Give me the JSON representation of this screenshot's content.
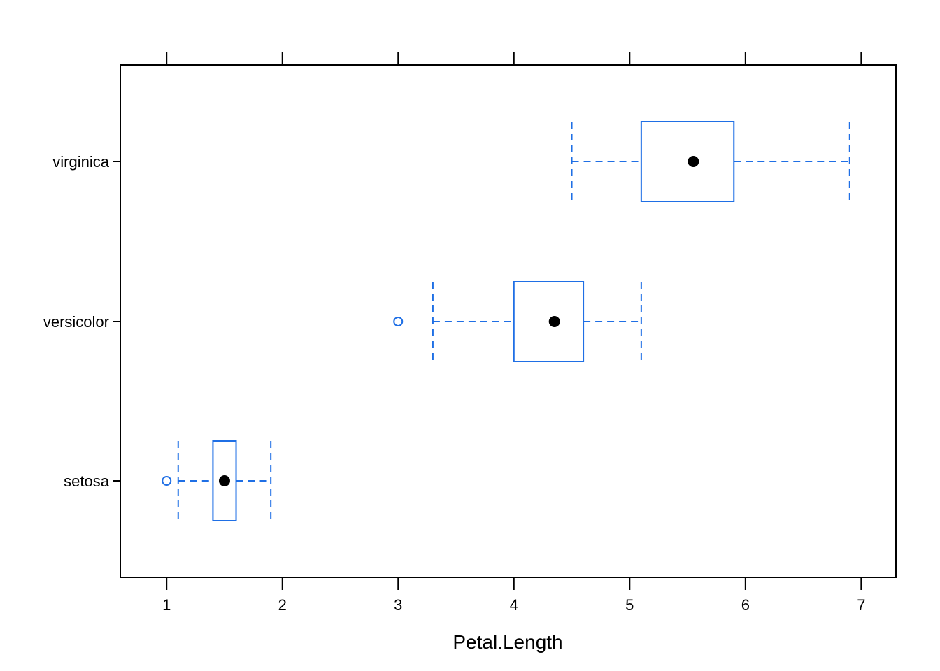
{
  "chart_data": {
    "type": "box",
    "orientation": "horizontal",
    "title": "",
    "xlabel": "Petal.Length",
    "ylabel": "",
    "xlim": [
      0.6,
      7.3
    ],
    "x_ticks": [
      1,
      2,
      3,
      4,
      5,
      6,
      7
    ],
    "x_ticks_top": true,
    "x_tick_labels_top": false,
    "grid": false,
    "colors": {
      "box": "#1f6fe5",
      "median_dot": "#000000",
      "frame": "#000000"
    },
    "categories": [
      "virginica",
      "versicolor",
      "setosa"
    ],
    "series": [
      {
        "category": "virginica",
        "whisker_low": 4.5,
        "q1": 5.1,
        "median": 5.55,
        "q3": 5.9,
        "whisker_high": 6.9,
        "outliers": []
      },
      {
        "category": "versicolor",
        "whisker_low": 3.3,
        "q1": 4.0,
        "median": 4.35,
        "q3": 4.6,
        "whisker_high": 5.1,
        "outliers": [
          3.0
        ]
      },
      {
        "category": "setosa",
        "whisker_low": 1.1,
        "q1": 1.4,
        "median": 1.5,
        "q3": 1.6,
        "whisker_high": 1.9,
        "outliers": [
          1.0
        ]
      }
    ]
  }
}
